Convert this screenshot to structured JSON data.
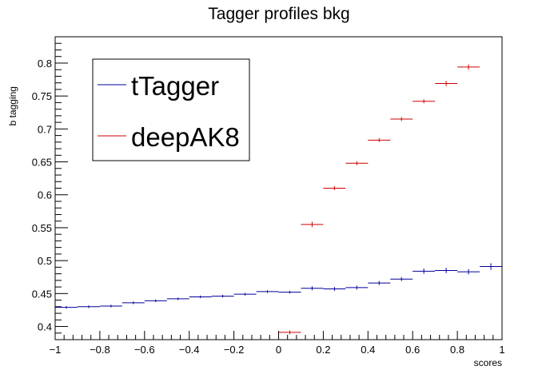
{
  "chart_data": {
    "type": "scatter",
    "title": "Tagger profiles bkg",
    "xlabel": "scores",
    "ylabel": "b tagging",
    "xlim": [
      -1,
      1
    ],
    "ylim": [
      0.38,
      0.84
    ],
    "x_ticks": [
      -1,
      -0.8,
      -0.6,
      -0.4,
      -0.2,
      0,
      0.2,
      0.4,
      0.6,
      0.8,
      1
    ],
    "x_tick_labels": [
      "−1",
      "−0.8",
      "−0.6",
      "−0.4",
      "−0.2",
      "0",
      "0.2",
      "0.4",
      "0.6",
      "0.8",
      "1"
    ],
    "y_ticks": [
      0.4,
      0.45,
      0.5,
      0.55,
      0.6,
      0.65,
      0.7,
      0.75,
      0.8
    ],
    "y_tick_labels": [
      "0.4",
      "0.45",
      "0.5",
      "0.55",
      "0.6",
      "0.65",
      "0.7",
      "0.75",
      "0.8"
    ],
    "bin_width": 0.1,
    "legend_position": "top-left",
    "grid": false,
    "series": [
      {
        "name": "tTagger",
        "color": "#000099",
        "x": [
          -0.95,
          -0.85,
          -0.75,
          -0.65,
          -0.55,
          -0.45,
          -0.35,
          -0.25,
          -0.15,
          -0.05,
          0.05,
          0.15,
          0.25,
          0.35,
          0.45,
          0.55,
          0.65,
          0.75,
          0.85,
          0.95
        ],
        "y": [
          0.429,
          0.43,
          0.431,
          0.436,
          0.439,
          0.442,
          0.445,
          0.446,
          0.449,
          0.453,
          0.452,
          0.458,
          0.457,
          0.459,
          0.466,
          0.472,
          0.484,
          0.485,
          0.483,
          0.491
        ],
        "yerr": [
          0.002,
          0.002,
          0.002,
          0.002,
          0.002,
          0.002,
          0.002,
          0.002,
          0.002,
          0.002,
          0.002,
          0.003,
          0.003,
          0.003,
          0.003,
          0.003,
          0.004,
          0.004,
          0.004,
          0.005
        ]
      },
      {
        "name": "deepAK8",
        "color": "#cc0000",
        "x": [
          0.05,
          0.15,
          0.25,
          0.35,
          0.45,
          0.55,
          0.65,
          0.75,
          0.85
        ],
        "y": [
          0.391,
          0.555,
          0.61,
          0.648,
          0.683,
          0.715,
          0.742,
          0.769,
          0.794
        ],
        "yerr": [
          0.003,
          0.004,
          0.003,
          0.003,
          0.003,
          0.003,
          0.003,
          0.004,
          0.004
        ]
      }
    ]
  }
}
